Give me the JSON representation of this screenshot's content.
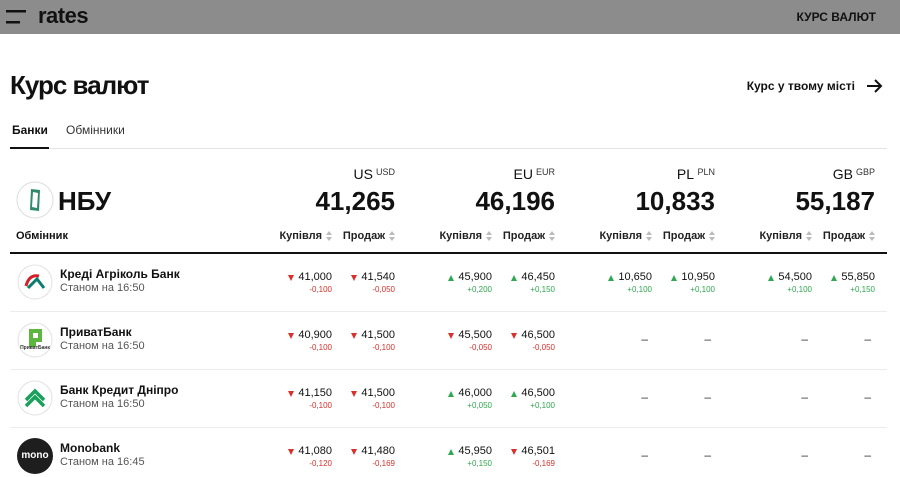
{
  "header": {
    "logo": "rates",
    "nav": "КУРС ВАЛЮТ"
  },
  "page": {
    "title": "Курс валют",
    "city_link": "Курс у твому місті"
  },
  "tabs": [
    "Банки",
    "Обмінники"
  ],
  "nbu": {
    "label": "НБУ"
  },
  "currencies": [
    {
      "flag": "US",
      "code": "USD",
      "nbu_rate": "41,265"
    },
    {
      "flag": "EU",
      "code": "EUR",
      "nbu_rate": "46,196"
    },
    {
      "flag": "PL",
      "code": "PLN",
      "nbu_rate": "10,833"
    },
    {
      "flag": "GB",
      "code": "GBP",
      "nbu_rate": "55,187"
    }
  ],
  "table": {
    "columns": {
      "name": "Обмінник",
      "buy": "Купівля",
      "sell": "Продаж"
    },
    "rows": [
      {
        "name": "Креді Агріколь Банк",
        "updated": "Станом на 16:50",
        "rates": [
          {
            "buy": {
              "value": "41,000",
              "change": "-0,100",
              "trend": "down"
            },
            "sell": {
              "value": "41,540",
              "change": "-0,050",
              "trend": "down"
            }
          },
          {
            "buy": {
              "value": "45,900",
              "change": "+0,200",
              "trend": "up"
            },
            "sell": {
              "value": "46,450",
              "change": "+0,150",
              "trend": "up"
            }
          },
          {
            "buy": {
              "value": "10,650",
              "change": "+0,100",
              "trend": "up"
            },
            "sell": {
              "value": "10,950",
              "change": "+0,100",
              "trend": "up"
            }
          },
          {
            "buy": {
              "value": "54,500",
              "change": "+0,100",
              "trend": "up"
            },
            "sell": {
              "value": "55,850",
              "change": "+0,150",
              "trend": "up"
            }
          }
        ]
      },
      {
        "name": "ПриватБанк",
        "logo_text": "ПриватБанк",
        "updated": "Станом на 16:50",
        "rates": [
          {
            "buy": {
              "value": "40,900",
              "change": "-0,100",
              "trend": "down"
            },
            "sell": {
              "value": "41,500",
              "change": "-0,100",
              "trend": "down"
            }
          },
          {
            "buy": {
              "value": "45,500",
              "change": "-0,050",
              "trend": "down"
            },
            "sell": {
              "value": "46,500",
              "change": "-0,050",
              "trend": "down"
            }
          },
          {
            "buy": {
              "value": "–"
            },
            "sell": {
              "value": "–"
            }
          },
          {
            "buy": {
              "value": "–"
            },
            "sell": {
              "value": "–"
            }
          }
        ]
      },
      {
        "name": "Банк Кредит Дніпро",
        "updated": "Станом на 16:50",
        "rates": [
          {
            "buy": {
              "value": "41,150",
              "change": "-0,100",
              "trend": "down"
            },
            "sell": {
              "value": "41,500",
              "change": "-0,100",
              "trend": "down"
            }
          },
          {
            "buy": {
              "value": "46,000",
              "change": "+0,050",
              "trend": "up"
            },
            "sell": {
              "value": "46,500",
              "change": "+0,100",
              "trend": "up"
            }
          },
          {
            "buy": {
              "value": "–"
            },
            "sell": {
              "value": "–"
            }
          },
          {
            "buy": {
              "value": "–"
            },
            "sell": {
              "value": "–"
            }
          }
        ]
      },
      {
        "name": "Monobank",
        "logo_text": "mono",
        "updated": "Станом на 16:45",
        "rates": [
          {
            "buy": {
              "value": "41,080",
              "change": "-0,120",
              "trend": "down"
            },
            "sell": {
              "value": "41,480",
              "change": "-0,169",
              "trend": "down"
            }
          },
          {
            "buy": {
              "value": "45,950",
              "change": "+0,150",
              "trend": "up"
            },
            "sell": {
              "value": "46,501",
              "change": "-0,169",
              "trend": "down"
            }
          },
          {
            "buy": {
              "value": "–"
            },
            "sell": {
              "value": "–"
            }
          },
          {
            "buy": {
              "value": "–"
            },
            "sell": {
              "value": "–"
            }
          }
        ]
      }
    ]
  }
}
